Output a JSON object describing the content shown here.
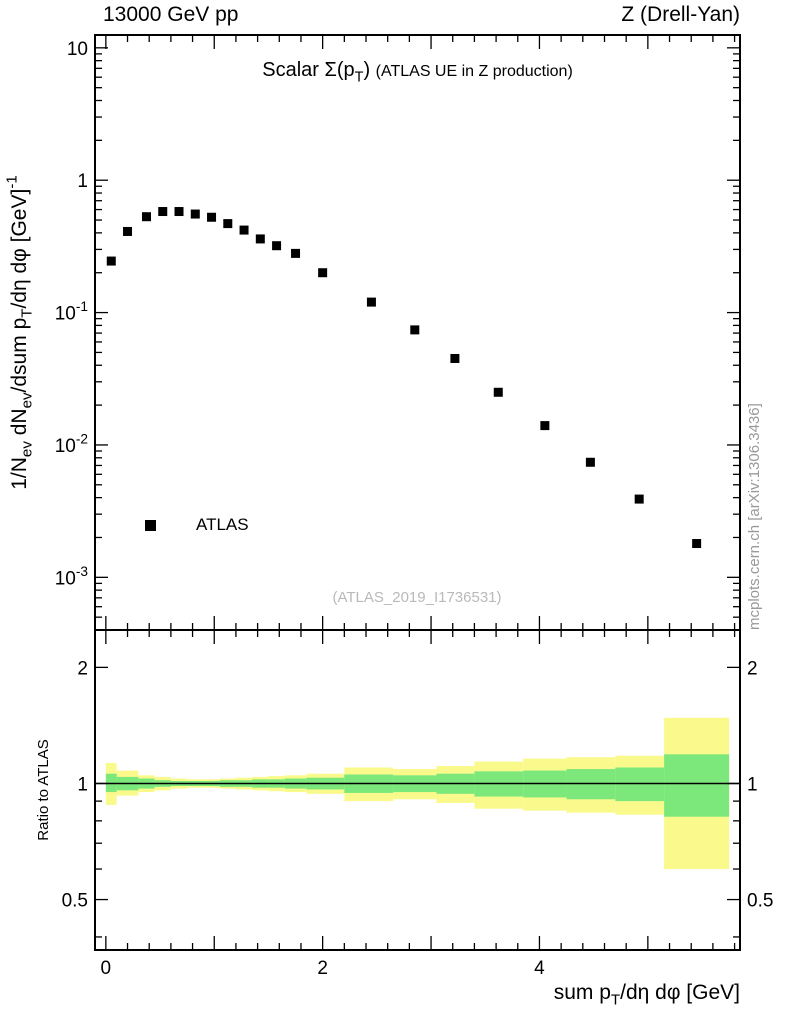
{
  "header": {
    "left": "13000 GeV pp",
    "right": "Z (Drell-Yan)"
  },
  "watermark": "(ATLAS_2019_I1736531)",
  "side_note": "mcplots.cern.ch [arXiv:1306.3436]",
  "legend": {
    "entries": [
      {
        "label": "ATLAS",
        "marker": "square",
        "color": "#000000"
      }
    ]
  },
  "colors": {
    "frame": "#000000",
    "marker": "#000000",
    "outer_band": "#fafa8c",
    "inner_band": "#7ce87c",
    "watermark": "#b9b9b9",
    "side_note": "#999999"
  },
  "chart_data": {
    "type": "scatter",
    "title_parts": [
      {
        "t": "Scalar Σ(p"
      },
      {
        "t": "T",
        "sub": true
      },
      {
        "t": ")  "
      },
      {
        "t": "(ATLAS UE in Z production)",
        "small": true
      }
    ],
    "xlabel_parts": [
      {
        "t": "sum p"
      },
      {
        "t": "T",
        "sub": true
      },
      {
        "t": "/dη dφ [GeV]"
      }
    ],
    "ylabel_parts": [
      {
        "t": "1/N"
      },
      {
        "t": "ev",
        "sub": true
      },
      {
        "t": " dN"
      },
      {
        "t": "ev",
        "sub": true
      },
      {
        "t": "/dsum p"
      },
      {
        "t": "T",
        "sub": true
      },
      {
        "t": "/dη dφ  [GeV]"
      },
      {
        "t": "-1",
        "sup": true
      }
    ],
    "ratio_label": "Ratio to ATLAS",
    "x_range": [
      -0.1,
      5.85
    ],
    "y_range": [
      0.0004,
      12.5
    ],
    "y_scale": "log",
    "ratio_scale": "log",
    "ratio_range": [
      0.37,
      2.5
    ],
    "x_ticks": {
      "labeled": [
        0,
        2,
        4
      ],
      "major_step": 1,
      "minor_step": 0.2
    },
    "y_ticks": [
      {
        "v": 10,
        "parts": [
          {
            "t": "10"
          }
        ]
      },
      {
        "v": 1,
        "parts": [
          {
            "t": "1"
          }
        ]
      },
      {
        "v": 0.1,
        "parts": [
          {
            "t": "10"
          },
          {
            "t": "-1",
            "sup": true
          }
        ]
      },
      {
        "v": 0.01,
        "parts": [
          {
            "t": "10"
          },
          {
            "t": "-2",
            "sup": true
          }
        ]
      },
      {
        "v": 0.001,
        "parts": [
          {
            "t": "10"
          },
          {
            "t": "-3",
            "sup": true
          }
        ]
      }
    ],
    "ratio_ticks": [
      0.5,
      1,
      2
    ],
    "ratio_minor_ticks": [
      0.4,
      0.6,
      0.7,
      0.8,
      0.9
    ],
    "ratio_line": 1.0,
    "series": [
      {
        "name": "ATLAS",
        "marker": "square",
        "color": "#000000",
        "x": [
          0.05,
          0.2,
          0.375,
          0.525,
          0.675,
          0.825,
          0.975,
          1.125,
          1.275,
          1.425,
          1.575,
          1.75,
          2.0,
          2.45,
          2.85,
          3.22,
          3.62,
          4.05,
          4.47,
          4.92,
          5.45
        ],
        "y": [
          0.245,
          0.41,
          0.53,
          0.58,
          0.58,
          0.555,
          0.525,
          0.47,
          0.42,
          0.36,
          0.32,
          0.28,
          0.2,
          0.12,
          0.074,
          0.045,
          0.025,
          0.014,
          0.0074,
          0.0039,
          0.0018
        ]
      }
    ],
    "ratio_bands": {
      "colors": {
        "outer": "#fafa8c",
        "inner": "#7ce87c"
      },
      "bins": [
        {
          "x1": 0.0,
          "x2": 0.1,
          "olo": 0.88,
          "ohi": 1.13,
          "ilo": 0.95,
          "ihi": 1.06
        },
        {
          "x1": 0.1,
          "x2": 0.3,
          "olo": 0.93,
          "ohi": 1.08,
          "ilo": 0.96,
          "ihi": 1.04
        },
        {
          "x1": 0.3,
          "x2": 0.45,
          "olo": 0.95,
          "ohi": 1.05,
          "ilo": 0.97,
          "ihi": 1.03
        },
        {
          "x1": 0.45,
          "x2": 0.6,
          "olo": 0.96,
          "ohi": 1.04,
          "ilo": 0.98,
          "ihi": 1.02
        },
        {
          "x1": 0.6,
          "x2": 0.75,
          "olo": 0.97,
          "ohi": 1.03,
          "ilo": 0.985,
          "ihi": 1.015
        },
        {
          "x1": 0.75,
          "x2": 0.9,
          "olo": 0.975,
          "ohi": 1.025,
          "ilo": 0.985,
          "ihi": 1.015
        },
        {
          "x1": 0.9,
          "x2": 1.05,
          "olo": 0.975,
          "ohi": 1.025,
          "ilo": 0.985,
          "ihi": 1.015
        },
        {
          "x1": 1.05,
          "x2": 1.2,
          "olo": 0.97,
          "ohi": 1.03,
          "ilo": 0.98,
          "ihi": 1.02
        },
        {
          "x1": 1.2,
          "x2": 1.35,
          "olo": 0.965,
          "ohi": 1.035,
          "ilo": 0.98,
          "ihi": 1.02
        },
        {
          "x1": 1.35,
          "x2": 1.5,
          "olo": 0.96,
          "ohi": 1.04,
          "ilo": 0.975,
          "ihi": 1.025
        },
        {
          "x1": 1.5,
          "x2": 1.65,
          "olo": 0.955,
          "ohi": 1.045,
          "ilo": 0.975,
          "ihi": 1.025
        },
        {
          "x1": 1.65,
          "x2": 1.85,
          "olo": 0.95,
          "ohi": 1.05,
          "ilo": 0.97,
          "ihi": 1.03
        },
        {
          "x1": 1.85,
          "x2": 2.2,
          "olo": 0.94,
          "ohi": 1.06,
          "ilo": 0.965,
          "ihi": 1.035
        },
        {
          "x1": 2.2,
          "x2": 2.65,
          "olo": 0.9,
          "ohi": 1.1,
          "ilo": 0.945,
          "ihi": 1.055
        },
        {
          "x1": 2.65,
          "x2": 3.05,
          "olo": 0.91,
          "ohi": 1.09,
          "ilo": 0.95,
          "ihi": 1.05
        },
        {
          "x1": 3.05,
          "x2": 3.4,
          "olo": 0.89,
          "ohi": 1.11,
          "ilo": 0.94,
          "ihi": 1.06
        },
        {
          "x1": 3.4,
          "x2": 3.85,
          "olo": 0.86,
          "ohi": 1.14,
          "ilo": 0.925,
          "ihi": 1.075
        },
        {
          "x1": 3.85,
          "x2": 4.25,
          "olo": 0.85,
          "ohi": 1.16,
          "ilo": 0.92,
          "ihi": 1.08
        },
        {
          "x1": 4.25,
          "x2": 4.7,
          "olo": 0.84,
          "ohi": 1.17,
          "ilo": 0.91,
          "ihi": 1.09
        },
        {
          "x1": 4.7,
          "x2": 5.15,
          "olo": 0.83,
          "ohi": 1.18,
          "ilo": 0.9,
          "ihi": 1.1
        },
        {
          "x1": 5.15,
          "x2": 5.75,
          "olo": 0.6,
          "ohi": 1.48,
          "ilo": 0.82,
          "ihi": 1.19
        }
      ]
    }
  }
}
